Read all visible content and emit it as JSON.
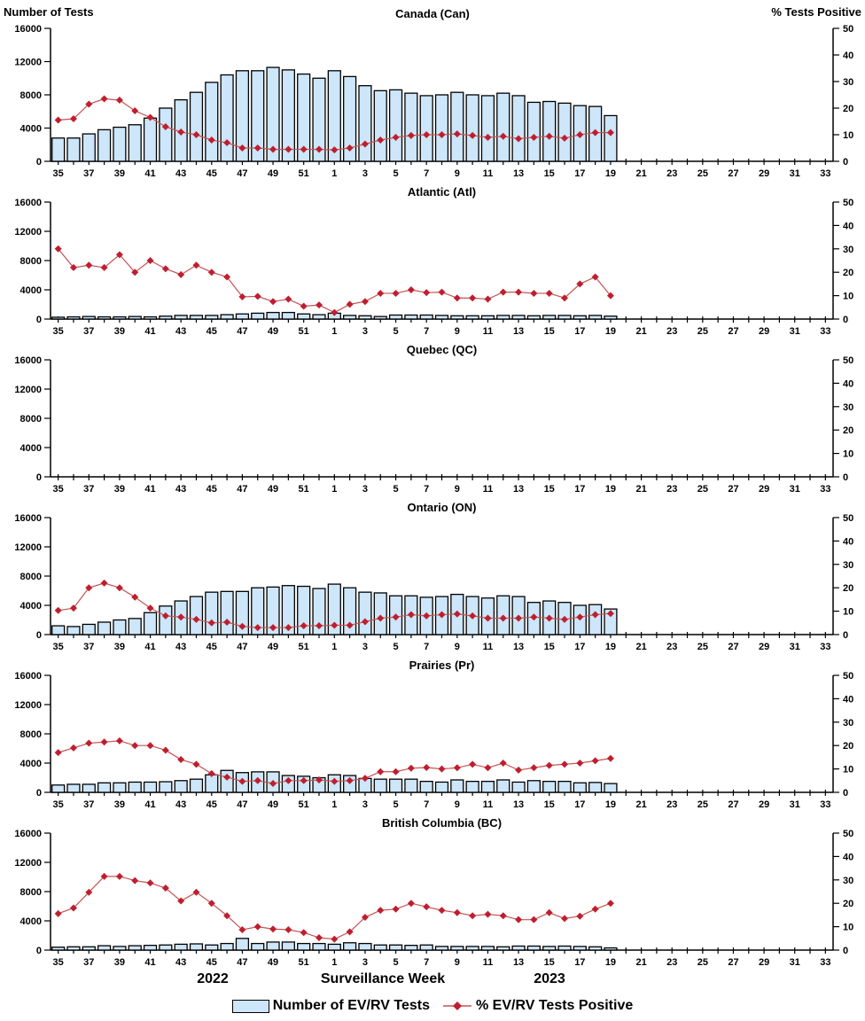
{
  "page": {
    "left_axis_title": "Number of Tests",
    "right_axis_title": "% Tests Positive"
  },
  "footer": {
    "year_left": "2022",
    "xlabel": "Surveillance Week",
    "year_right": "2023"
  },
  "legend": {
    "bars_label": "Number of EV/RV Tests",
    "line_label": "% EV/RV Tests Positive"
  },
  "colors": {
    "bar_fill": "#CDE6F9",
    "bar_stroke": "#000000",
    "line": "#C65353",
    "marker": "#BF1E2E",
    "axis": "#000000"
  },
  "axis": {
    "left_ticks": [
      0,
      4000,
      8000,
      12000,
      16000
    ],
    "left_max": 16000,
    "right_ticks": [
      0,
      10,
      20,
      30,
      40,
      50
    ],
    "right_max": 50,
    "categories": [
      "35",
      "36",
      "37",
      "38",
      "39",
      "40",
      "41",
      "42",
      "43",
      "44",
      "45",
      "46",
      "47",
      "48",
      "49",
      "50",
      "51",
      "52",
      "1",
      "2",
      "3",
      "4",
      "5",
      "6",
      "7",
      "8",
      "9",
      "10",
      "11",
      "12",
      "13",
      "14",
      "15",
      "16",
      "17",
      "18",
      "19",
      "20",
      "21",
      "22",
      "23",
      "24",
      "25",
      "26",
      "27",
      "28",
      "29",
      "30",
      "31",
      "32",
      "33"
    ]
  },
  "chart_data": [
    {
      "type": "bar+line",
      "title": "Canada (Can)",
      "series": [
        {
          "name": "Number of EV/RV Tests",
          "axis": "left",
          "values": [
            2800,
            2800,
            3300,
            3800,
            4100,
            4400,
            5200,
            6400,
            7400,
            8300,
            9500,
            10400,
            10900,
            10900,
            11300,
            11000,
            10500,
            10000,
            10900,
            10200,
            9100,
            8500,
            8600,
            8200,
            7900,
            8000,
            8300,
            8000,
            7900,
            8200,
            7900,
            7100,
            7200,
            7000,
            6700,
            6600,
            5500
          ]
        },
        {
          "name": "% EV/RV Tests Positive",
          "axis": "right",
          "values": [
            15.5,
            16,
            21.5,
            23.5,
            23,
            19,
            16.5,
            13,
            11,
            10,
            8,
            7,
            5,
            5,
            4.5,
            4.5,
            4.5,
            4.5,
            4.3,
            5,
            6.5,
            8,
            9,
            9.7,
            10,
            10,
            10.3,
            9.7,
            9,
            9.4,
            8.5,
            9,
            9.4,
            8.7,
            10,
            10.8,
            10.8
          ]
        }
      ]
    },
    {
      "type": "bar+line",
      "title": "Atlantic (Atl)",
      "series": [
        {
          "name": "Number of EV/RV Tests",
          "axis": "left",
          "values": [
            250,
            300,
            350,
            300,
            300,
            350,
            300,
            400,
            500,
            500,
            500,
            600,
            700,
            800,
            900,
            900,
            700,
            600,
            800,
            500,
            450,
            350,
            550,
            550,
            550,
            500,
            450,
            450,
            450,
            500,
            500,
            450,
            500,
            500,
            450,
            500,
            400
          ]
        },
        {
          "name": "% EV/RV Tests Positive",
          "axis": "right",
          "values": [
            30,
            22,
            23,
            22,
            27.5,
            20,
            25,
            21.5,
            19,
            23,
            20,
            18,
            9.5,
            9.7,
            7.5,
            8.5,
            5.5,
            6,
            2.8,
            6.3,
            7.5,
            11,
            11,
            12.5,
            11.3,
            11.5,
            9,
            9,
            8.5,
            11.5,
            11.5,
            11,
            11,
            9,
            15,
            18,
            10
          ]
        }
      ]
    },
    {
      "type": "bar+line",
      "title": "Quebec (QC)",
      "series": [
        {
          "name": "Number of EV/RV Tests",
          "axis": "left",
          "values": []
        },
        {
          "name": "% EV/RV Tests Positive",
          "axis": "right",
          "values": []
        }
      ]
    },
    {
      "type": "bar+line",
      "title": "Ontario (ON)",
      "series": [
        {
          "name": "Number of EV/RV Tests",
          "axis": "left",
          "values": [
            1200,
            1100,
            1400,
            1700,
            2000,
            2200,
            3000,
            3900,
            4600,
            5200,
            5800,
            5900,
            5900,
            6400,
            6500,
            6700,
            6600,
            6300,
            6900,
            6400,
            5800,
            5700,
            5300,
            5300,
            5100,
            5200,
            5500,
            5200,
            5000,
            5300,
            5200,
            4400,
            4600,
            4400,
            4000,
            4100,
            3500
          ]
        },
        {
          "name": "% EV/RV Tests Positive",
          "axis": "right",
          "values": [
            10.3,
            11.3,
            20,
            22,
            20,
            16,
            11.3,
            8,
            7.5,
            6.5,
            5,
            5.3,
            3.5,
            3,
            3,
            3,
            3.8,
            3.8,
            4,
            4,
            5.5,
            7,
            7.5,
            8.5,
            8,
            8.5,
            8.8,
            8,
            7,
            7,
            7,
            7.5,
            7,
            6.5,
            7.5,
            8.5,
            9
          ]
        }
      ]
    },
    {
      "type": "bar+line",
      "title": "Prairies (Pr)",
      "series": [
        {
          "name": "Number of EV/RV Tests",
          "axis": "left",
          "values": [
            1000,
            1100,
            1100,
            1300,
            1300,
            1400,
            1400,
            1450,
            1600,
            1800,
            2400,
            3000,
            2700,
            2800,
            2800,
            2300,
            2200,
            2000,
            2400,
            2300,
            1900,
            1800,
            1800,
            1800,
            1500,
            1400,
            1700,
            1500,
            1500,
            1700,
            1400,
            1600,
            1500,
            1500,
            1300,
            1350,
            1200
          ]
        },
        {
          "name": "% EV/RV Tests Positive",
          "axis": "right",
          "values": [
            17,
            19,
            21,
            21.5,
            22,
            20,
            20,
            18,
            14,
            12,
            8,
            6.5,
            4.7,
            5,
            3.8,
            5,
            5,
            5.3,
            4.7,
            5,
            6,
            8.8,
            8.8,
            10.3,
            10.6,
            10,
            10.5,
            12,
            10.5,
            12.5,
            9.5,
            10.5,
            11.5,
            12,
            12.5,
            13.5,
            14.5
          ]
        }
      ]
    },
    {
      "type": "bar+line",
      "title": "British Columbia (BC)",
      "series": [
        {
          "name": "Number of EV/RV Tests",
          "axis": "left",
          "values": [
            400,
            450,
            450,
            600,
            500,
            600,
            650,
            700,
            800,
            850,
            700,
            900,
            1600,
            900,
            1100,
            1100,
            900,
            900,
            800,
            1000,
            900,
            700,
            700,
            650,
            700,
            500,
            500,
            500,
            500,
            450,
            550,
            550,
            500,
            550,
            500,
            450,
            300
          ]
        },
        {
          "name": "% EV/RV Tests Positive",
          "axis": "right",
          "values": [
            15.6,
            18,
            24.7,
            31.5,
            31.5,
            29.7,
            28.7,
            26.5,
            21,
            24.7,
            20,
            14.7,
            8.7,
            10,
            9,
            8.7,
            7.5,
            5.3,
            4.7,
            7.8,
            14,
            17,
            17.5,
            20,
            18.5,
            17,
            16,
            14.7,
            15.3,
            14.7,
            13,
            13,
            16,
            13.5,
            14.5,
            17.5,
            20
          ]
        }
      ]
    }
  ]
}
